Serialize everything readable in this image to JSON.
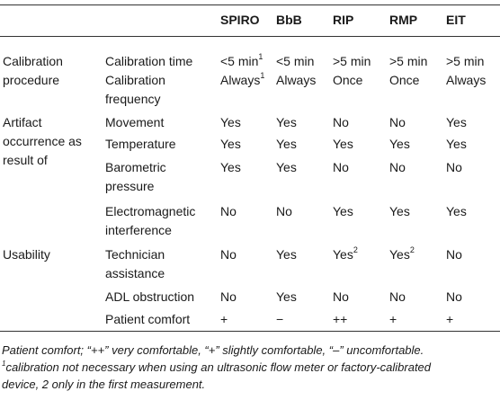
{
  "header": {
    "col1": "",
    "col2": "",
    "spiro": "SPIRO",
    "bbb": "BbB",
    "rip": "RIP",
    "rmp": "RMP",
    "eit": "EIT"
  },
  "rows": {
    "cal_group_l1": "Calibration",
    "cal_group_l2": "procedure",
    "cal_time": {
      "label": "Calibration time",
      "spiro": "<5 min",
      "spiro_sup": "1",
      "bbb": "<5 min",
      "rip": ">5 min",
      "rmp": ">5 min",
      "eit": ">5 min"
    },
    "cal_freq": {
      "label_l1": "Calibration",
      "label_l2": "frequency",
      "spiro": "Always",
      "spiro_sup": "1",
      "bbb": "Always",
      "rip": "Once",
      "rmp": "Once",
      "eit": "Always"
    },
    "art_group_l1": "Artifact",
    "art_group_l2": "occurrence as",
    "art_group_l3": "result of",
    "movement": {
      "label": "Movement",
      "spiro": "Yes",
      "bbb": "Yes",
      "rip": "No",
      "rmp": "No",
      "eit": "Yes"
    },
    "temperature": {
      "label": "Temperature",
      "spiro": "Yes",
      "bbb": "Yes",
      "rip": "Yes",
      "rmp": "Yes",
      "eit": "Yes"
    },
    "barometric": {
      "label_l1": "Barometric",
      "label_l2": "pressure",
      "spiro": "Yes",
      "bbb": "Yes",
      "rip": "No",
      "rmp": "No",
      "eit": "No"
    },
    "electromagnetic": {
      "label_l1": "Electromagnetic",
      "label_l2": "interference",
      "spiro": "No",
      "bbb": "No",
      "rip": "Yes",
      "rmp": "Yes",
      "eit": "Yes"
    },
    "usability_group": "Usability",
    "technician": {
      "label_l1": "Technician",
      "label_l2": "assistance",
      "spiro": "No",
      "bbb": "Yes",
      "rip": "Yes",
      "rip_sup": "2",
      "rmp": "Yes",
      "rmp_sup": "2",
      "eit": "No"
    },
    "adl": {
      "label": "ADL obstruction",
      "spiro": "No",
      "bbb": "Yes",
      "rip": "No",
      "rmp": "No",
      "eit": "No"
    },
    "comfort": {
      "label": "Patient comfort",
      "spiro": "+",
      "bbb": "−",
      "rip": "++",
      "rmp": "+",
      "eit": "+"
    }
  },
  "footnote": {
    "line1": "Patient comfort; “++” very comfortable, “+” slightly comfortable, “–” uncomfortable.",
    "sup1": "1",
    "line2": "calibration not necessary when using an ultrasonic flow meter or factory-calibrated",
    "line3": "device, 2 only in the first measurement."
  }
}
